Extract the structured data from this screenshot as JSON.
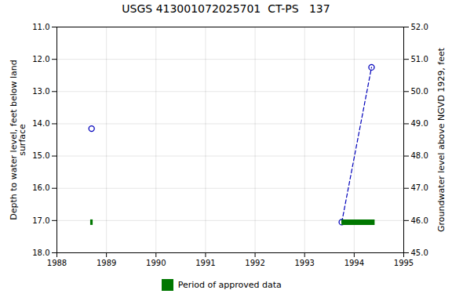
{
  "chart_data": {
    "type": "line",
    "title": "USGS 413001072025701  CT-PS   137",
    "y_label": "Depth to water level, feet below land\nsurface",
    "y2_label": "Groundwater level above NGVD 1929, feet",
    "xlim": [
      1988.0,
      1995.0
    ],
    "xticks": [
      1988,
      1989,
      1990,
      1991,
      1992,
      1993,
      1994,
      1995
    ],
    "ylim": [
      18.0,
      11.0
    ],
    "yticks": [
      {
        "value": 11.0,
        "label": "11.0"
      },
      {
        "value": 12.0,
        "label": "12.0"
      },
      {
        "value": 13.0,
        "label": "13.0"
      },
      {
        "value": 14.0,
        "label": "14.0"
      },
      {
        "value": 15.0,
        "label": "15.0"
      },
      {
        "value": 16.0,
        "label": "16.0"
      },
      {
        "value": 17.0,
        "label": "17.0"
      },
      {
        "value": 18.0,
        "label": "18.0"
      }
    ],
    "y2lim": [
      45.0,
      52.0
    ],
    "y2ticks": [
      {
        "value": 52.0,
        "label": "52.0"
      },
      {
        "value": 51.0,
        "label": "51.0"
      },
      {
        "value": 50.0,
        "label": "50.0"
      },
      {
        "value": 49.0,
        "label": "49.0"
      },
      {
        "value": 48.0,
        "label": "48.0"
      },
      {
        "value": 47.0,
        "label": "47.0"
      },
      {
        "value": 46.0,
        "label": "46.0"
      },
      {
        "value": 45.0,
        "label": "45.0"
      }
    ],
    "grid": true,
    "legend": "bottom",
    "series": [
      {
        "type": "scatter",
        "x": [
          1988.7
        ],
        "values": [
          14.15
        ],
        "color": "#0000bb",
        "marker": "circle"
      },
      {
        "type": "line",
        "x": [
          1993.75,
          1994.35
        ],
        "values": [
          17.05,
          12.25
        ],
        "color": "#0000bb",
        "marker": "circle",
        "line_style": "dashed"
      },
      {
        "type": "period",
        "name": "Period of approved data",
        "color": "#007700",
        "x_start": [
          1988.68,
          1993.75
        ],
        "x_end": [
          1988.73,
          1994.42
        ],
        "values": [
          17.05,
          17.05
        ]
      }
    ]
  }
}
